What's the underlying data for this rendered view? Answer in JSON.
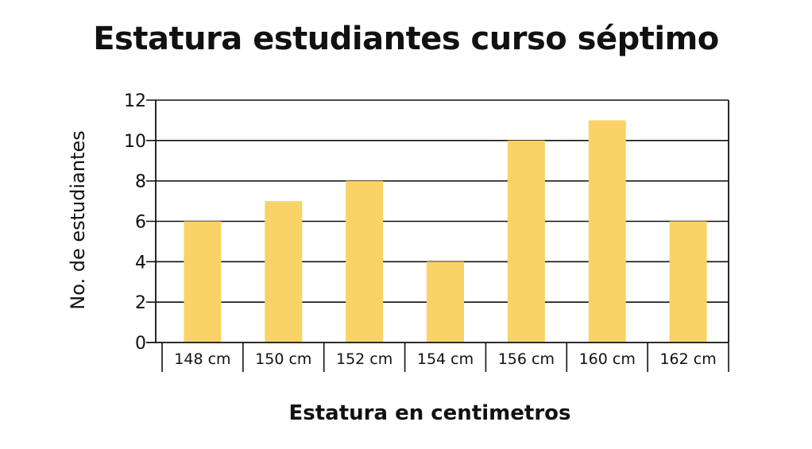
{
  "chart_data": {
    "type": "bar",
    "title": "Estatura estudiantes curso séptimo",
    "xlabel": "Estatura en centimetros",
    "ylabel": "No. de estudiantes",
    "categories": [
      "148 cm",
      "150 cm",
      "152 cm",
      "154 cm",
      "156 cm",
      "160 cm",
      "162 cm"
    ],
    "values": [
      6,
      7,
      8,
      4,
      10,
      11,
      6
    ],
    "ylim": [
      0,
      12
    ],
    "yticks": [
      0,
      2,
      4,
      6,
      8,
      10,
      12
    ],
    "grid": true,
    "colors": {
      "bar": "#FAD366",
      "grid": "#111111"
    }
  }
}
